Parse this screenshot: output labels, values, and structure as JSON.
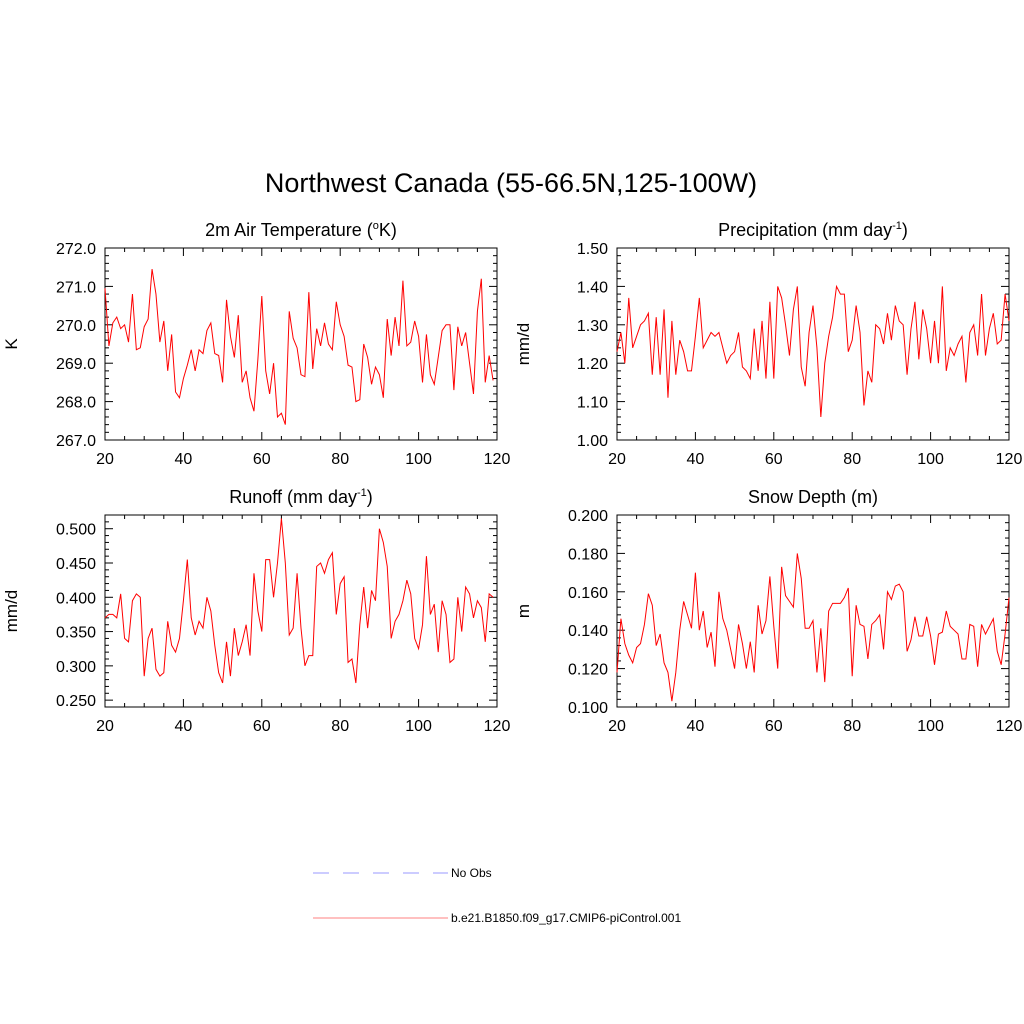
{
  "page": {
    "title": "Northwest Canada (55-66.5N,125-100W)"
  },
  "colors": {
    "series": "#ff0000",
    "obs": "#9999ff",
    "axes": "#000000"
  },
  "legend": {
    "items": [
      {
        "label": "No Obs",
        "style": "dashed",
        "color": "#9999ff"
      },
      {
        "label": "b.e21.B1850.f09_g17.CMIP6-piControl.001",
        "style": "solid",
        "color": "#ff8080"
      }
    ]
  },
  "chart_data": [
    {
      "type": "line",
      "title_main": "2m Air Temperature (",
      "title_sup_o": "o",
      "title_tail": "K)",
      "title_sup": "",
      "title_end": "",
      "ylabel": "K",
      "xlim": [
        20,
        120
      ],
      "ylim": [
        267.0,
        272.0
      ],
      "x_ticks": [
        20,
        40,
        60,
        80,
        100,
        120
      ],
      "y_ticks": [
        267.0,
        268.0,
        269.0,
        270.0,
        271.0,
        272.0
      ],
      "y_tick_labels": [
        "267.0",
        "268.0",
        "269.0",
        "270.0",
        "271.0",
        "272.0"
      ],
      "x_start": 20,
      "values": [
        270.95,
        269.45,
        270.05,
        270.2,
        269.9,
        270.0,
        269.55,
        270.8,
        269.35,
        269.4,
        269.95,
        270.15,
        271.45,
        270.8,
        269.55,
        270.1,
        268.8,
        269.75,
        268.25,
        268.1,
        268.6,
        268.95,
        269.35,
        268.8,
        269.35,
        269.25,
        269.85,
        270.05,
        269.25,
        269.2,
        268.5,
        270.65,
        269.7,
        269.15,
        270.25,
        268.5,
        268.8,
        268.1,
        267.75,
        269.1,
        270.75,
        268.8,
        268.2,
        269.0,
        267.6,
        267.7,
        267.4,
        270.35,
        269.65,
        269.4,
        268.7,
        268.65,
        270.85,
        268.85,
        269.9,
        269.45,
        270.05,
        269.5,
        269.35,
        270.6,
        270.0,
        269.7,
        268.95,
        268.9,
        268.0,
        268.05,
        269.5,
        269.15,
        268.45,
        268.9,
        268.7,
        268.1,
        270.15,
        269.2,
        270.2,
        269.45,
        271.15,
        269.45,
        269.55,
        270.1,
        269.7,
        268.5,
        269.75,
        268.7,
        268.45,
        269.15,
        269.85,
        270.0,
        270.0,
        268.3,
        269.95,
        269.45,
        269.8,
        269.0,
        268.2,
        270.35,
        271.2,
        268.5,
        269.2,
        268.55
      ]
    },
    {
      "type": "line",
      "title_main": "Precipitation (mm day",
      "title_sup_o": "",
      "title_tail": "",
      "title_sup": "-1",
      "title_end": ")",
      "ylabel": "mm/d",
      "xlim": [
        20,
        120
      ],
      "ylim": [
        1.0,
        1.5
      ],
      "x_ticks": [
        20,
        40,
        60,
        80,
        100,
        120
      ],
      "y_ticks": [
        1.0,
        1.1,
        1.2,
        1.3,
        1.4,
        1.5
      ],
      "y_tick_labels": [
        "1.00",
        "1.10",
        "1.20",
        "1.30",
        "1.40",
        "1.50"
      ],
      "x_start": 20,
      "values": [
        1.23,
        1.28,
        1.2,
        1.37,
        1.24,
        1.27,
        1.3,
        1.31,
        1.33,
        1.17,
        1.32,
        1.17,
        1.34,
        1.11,
        1.31,
        1.17,
        1.26,
        1.23,
        1.18,
        1.18,
        1.27,
        1.37,
        1.24,
        1.26,
        1.28,
        1.27,
        1.28,
        1.24,
        1.2,
        1.22,
        1.23,
        1.28,
        1.19,
        1.18,
        1.16,
        1.29,
        1.18,
        1.31,
        1.16,
        1.36,
        1.16,
        1.4,
        1.37,
        1.3,
        1.22,
        1.34,
        1.4,
        1.19,
        1.14,
        1.28,
        1.35,
        1.24,
        1.06,
        1.2,
        1.27,
        1.32,
        1.4,
        1.38,
        1.38,
        1.23,
        1.26,
        1.35,
        1.28,
        1.09,
        1.18,
        1.15,
        1.3,
        1.29,
        1.25,
        1.33,
        1.26,
        1.35,
        1.31,
        1.3,
        1.17,
        1.29,
        1.36,
        1.21,
        1.34,
        1.29,
        1.2,
        1.31,
        1.2,
        1.4,
        1.18,
        1.24,
        1.22,
        1.25,
        1.27,
        1.15,
        1.28,
        1.3,
        1.22,
        1.38,
        1.22,
        1.29,
        1.33,
        1.25,
        1.26,
        1.38,
        1.31
      ]
    },
    {
      "type": "line",
      "title_main": "Runoff (mm day",
      "title_sup_o": "",
      "title_tail": "",
      "title_sup": "-1",
      "title_end": ")",
      "ylabel": "mm/d",
      "xlim": [
        20,
        120
      ],
      "ylim": [
        0.24,
        0.52
      ],
      "x_ticks": [
        20,
        40,
        60,
        80,
        100,
        120
      ],
      "y_ticks": [
        0.25,
        0.3,
        0.35,
        0.4,
        0.45,
        0.5
      ],
      "y_tick_labels": [
        "0.250",
        "0.300",
        "0.350",
        "0.400",
        "0.450",
        "0.500"
      ],
      "x_start": 20,
      "values": [
        0.37,
        0.375,
        0.375,
        0.37,
        0.405,
        0.34,
        0.335,
        0.395,
        0.405,
        0.4,
        0.285,
        0.34,
        0.355,
        0.295,
        0.285,
        0.29,
        0.365,
        0.33,
        0.32,
        0.34,
        0.395,
        0.455,
        0.37,
        0.345,
        0.365,
        0.355,
        0.4,
        0.38,
        0.33,
        0.29,
        0.275,
        0.335,
        0.285,
        0.355,
        0.315,
        0.335,
        0.36,
        0.315,
        0.435,
        0.38,
        0.35,
        0.455,
        0.455,
        0.4,
        0.45,
        0.515,
        0.45,
        0.345,
        0.355,
        0.435,
        0.355,
        0.3,
        0.315,
        0.315,
        0.445,
        0.45,
        0.435,
        0.455,
        0.465,
        0.375,
        0.42,
        0.43,
        0.305,
        0.31,
        0.275,
        0.36,
        0.415,
        0.355,
        0.41,
        0.395,
        0.5,
        0.48,
        0.445,
        0.34,
        0.365,
        0.375,
        0.395,
        0.425,
        0.405,
        0.34,
        0.325,
        0.36,
        0.46,
        0.375,
        0.39,
        0.32,
        0.395,
        0.375,
        0.305,
        0.31,
        0.4,
        0.35,
        0.415,
        0.405,
        0.37,
        0.395,
        0.385,
        0.335,
        0.405,
        0.4
      ]
    },
    {
      "type": "line",
      "title_main": "Snow Depth (m)",
      "title_sup_o": "",
      "title_tail": "",
      "title_sup": "",
      "title_end": "",
      "ylabel": "m",
      "xlim": [
        20,
        120
      ],
      "ylim": [
        0.1,
        0.2
      ],
      "x_ticks": [
        20,
        40,
        60,
        80,
        100,
        120
      ],
      "y_ticks": [
        0.1,
        0.12,
        0.14,
        0.16,
        0.18,
        0.2
      ],
      "y_tick_labels": [
        "0.100",
        "0.120",
        "0.140",
        "0.160",
        "0.180",
        "0.200"
      ],
      "x_start": 20,
      "values": [
        0.118,
        0.146,
        0.133,
        0.127,
        0.123,
        0.131,
        0.133,
        0.143,
        0.159,
        0.153,
        0.132,
        0.138,
        0.123,
        0.118,
        0.103,
        0.118,
        0.14,
        0.155,
        0.148,
        0.141,
        0.17,
        0.14,
        0.15,
        0.131,
        0.139,
        0.121,
        0.16,
        0.146,
        0.14,
        0.13,
        0.12,
        0.143,
        0.133,
        0.12,
        0.134,
        0.118,
        0.153,
        0.138,
        0.145,
        0.168,
        0.142,
        0.12,
        0.173,
        0.158,
        0.155,
        0.152,
        0.18,
        0.167,
        0.141,
        0.141,
        0.145,
        0.118,
        0.141,
        0.113,
        0.15,
        0.154,
        0.154,
        0.154,
        0.157,
        0.162,
        0.116,
        0.153,
        0.143,
        0.142,
        0.125,
        0.143,
        0.145,
        0.148,
        0.13,
        0.16,
        0.156,
        0.163,
        0.164,
        0.16,
        0.129,
        0.135,
        0.147,
        0.137,
        0.137,
        0.147,
        0.137,
        0.122,
        0.138,
        0.139,
        0.15,
        0.142,
        0.14,
        0.138,
        0.125,
        0.125,
        0.143,
        0.142,
        0.121,
        0.143,
        0.138,
        0.142,
        0.146,
        0.129,
        0.122,
        0.138,
        0.157
      ]
    }
  ]
}
